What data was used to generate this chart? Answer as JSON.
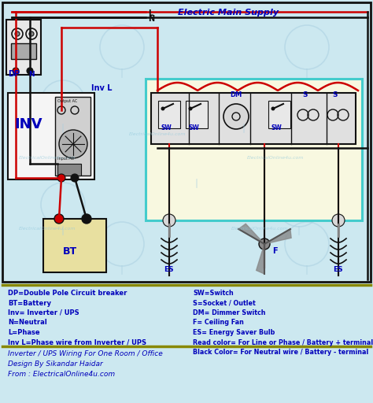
{
  "title": "Electric Main Supply",
  "bg_color": "#cce8f0",
  "wire_red": "#cc0000",
  "wire_black": "#111111",
  "wire_cyan": "#44cccc",
  "label_color": "#0000bb",
  "box_fill": "#f0f0f0",
  "inv_fill": "#f5f5f5",
  "bt_fill": "#e8e0a0",
  "panel_fill": "#f8f8e0",
  "legend_sep_color": "#888800",
  "legend_bg": "#cce8f0",
  "footer_bg": "#cce8f0",
  "legend_left": [
    "DP=Double Pole Circuit breaker",
    "BT=Battery",
    "Inv= Inverter / UPS",
    "N=Neutral",
    "L=Phase",
    "Inv L=Phase wire from Inverter / UPS"
  ],
  "legend_right": [
    "SW=Switch",
    "S=Socket / Outlet",
    "DM= Dimmer Switch",
    "F= Ceiling Fan",
    "ES= Energy Saver Bulb",
    "Read color= For Line or Phase / Battery + terminal",
    "Black Color= For Neutral wire / Battery - terminal"
  ],
  "footer_lines": [
    "Inverter / UPS Wiring For One Room / Office",
    "Design By Sikandar Haidar",
    "From : ElectricalOnline4u.com"
  ]
}
